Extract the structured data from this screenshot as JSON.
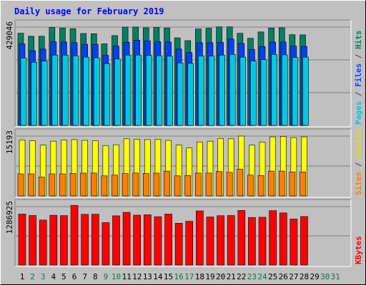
{
  "chart_data": {
    "type": "bar",
    "title": "Daily usage for February 2019",
    "days": [
      "1",
      "2",
      "3",
      "4",
      "5",
      "6",
      "7",
      "8",
      "9",
      "10",
      "11",
      "12",
      "13",
      "14",
      "15",
      "16",
      "17",
      "18",
      "19",
      "20",
      "21",
      "22",
      "23",
      "24",
      "25",
      "26",
      "27",
      "28",
      "29",
      "30",
      "31"
    ],
    "weekend_days": [
      "2",
      "3",
      "9",
      "10",
      "16",
      "17",
      "23",
      "24",
      "30",
      "31"
    ],
    "no_data_days": [
      "29",
      "30",
      "31"
    ],
    "panels": [
      {
        "id": "pages-files-hits",
        "ymax_label": "429046",
        "ymax": 429046,
        "legend": [
          {
            "text": "Pages",
            "color": "#00c8e0"
          },
          {
            "text": " / ",
            "color": "#444444"
          },
          {
            "text": "Files",
            "color": "#0040ff"
          },
          {
            "text": " / ",
            "color": "#444444"
          },
          {
            "text": "Hits",
            "color": "#008060"
          }
        ],
        "series": [
          {
            "name": "Hits",
            "color": "#008060",
            "values": [
              402000,
              389000,
              389000,
              427000,
              425000,
              422000,
              401000,
              400000,
              356000,
              392000,
              429000,
              429000,
              426000,
              427000,
              425000,
              382000,
              370000,
              421000,
              424000,
              430000,
              430000,
              402000,
              380000,
              408000,
              425000,
              426000,
              396000,
              395000
            ]
          },
          {
            "name": "Files",
            "color": "#0040ff",
            "values": [
              356000,
              326000,
              333000,
              365000,
              364000,
              361000,
              354000,
              354000,
              306000,
              346000,
              363000,
              372000,
              369000,
              365000,
              364000,
              333000,
              318000,
              361000,
              361000,
              362000,
              377000,
              358000,
              332000,
              344000,
              364000,
              364000,
              346000,
              345000
            ]
          },
          {
            "name": "Pages",
            "color": "#00c8e0",
            "values": [
              294000,
              276000,
              281000,
              307000,
              307000,
              304000,
              298000,
              295000,
              270000,
              290000,
              307000,
              307000,
              306000,
              304000,
              302000,
              273000,
              271000,
              303000,
              303000,
              307000,
              310000,
              298000,
              281000,
              287000,
              310000,
              308000,
              297000,
              298000
            ]
          }
        ]
      },
      {
        "id": "visits-sites",
        "ymax_label": "15193",
        "ymax": 15193,
        "legend": [
          {
            "text": "Sites",
            "color": "#ff8000"
          },
          {
            "text": " / ",
            "color": "#444444"
          },
          {
            "text": "Visits",
            "color": "#e0e000"
          }
        ],
        "series": [
          {
            "name": "Visits",
            "color": "#ffff00",
            "values": [
              14200,
              14000,
              12900,
              13900,
              14200,
              14300,
              14100,
              14000,
              12800,
              13000,
              14500,
              14400,
              14300,
              14400,
              14100,
              12900,
              12200,
              13700,
              13900,
              14600,
              14500,
              15193,
              12900,
              13700,
              15000,
              15100,
              14800,
              15000
            ]
          },
          {
            "name": "Sites",
            "color": "#ff8000",
            "values": [
              5600,
              5600,
              4800,
              5600,
              5600,
              5700,
              5800,
              5800,
              5100,
              5300,
              5700,
              5800,
              5700,
              5800,
              6300,
              5100,
              5200,
              5800,
              5800,
              6200,
              6000,
              6800,
              5300,
              5200,
              6300,
              6300,
              6100,
              6100
            ]
          }
        ]
      },
      {
        "id": "kbytes",
        "ymax_label": "1286925",
        "ymax": 1286925,
        "legend": [
          {
            "text": "KBytes",
            "color": "#ff0000"
          }
        ],
        "series": [
          {
            "name": "KBytes",
            "color": "#ff0000",
            "values": [
              1122000,
              1091000,
              991000,
              1097000,
              1089000,
              1315000,
              1116000,
              1119000,
              935000,
              1084000,
              1161000,
              1099000,
              1107000,
              1065000,
              1123000,
              921000,
              964000,
              1193000,
              1059000,
              1087000,
              1091000,
              1203000,
              1048000,
              1053000,
              1199000,
              1148000,
              1014000,
              1069000
            ]
          }
        ]
      }
    ]
  }
}
